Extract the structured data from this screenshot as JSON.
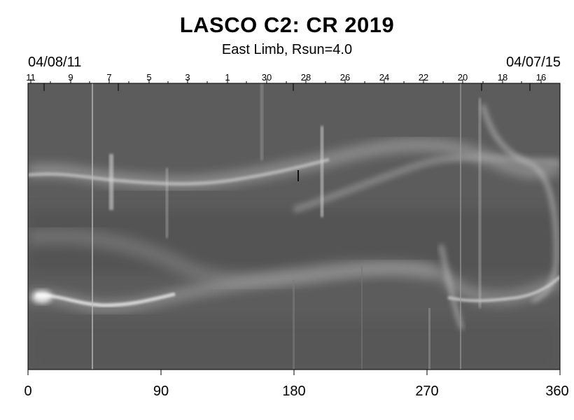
{
  "title": "LASCO C2: CR 2019",
  "subtitle": "East Limb, Rsun=4.0",
  "top_axis": {
    "start_date": "04/08/11",
    "end_date": "04/07/15",
    "day_labels": [
      "11",
      "9",
      "7",
      "5",
      "3",
      "1",
      "30",
      "28",
      "26",
      "24",
      "22",
      "20",
      "18",
      "16"
    ]
  },
  "bottom_axis": {
    "tick_labels": [
      "0",
      "90",
      "180",
      "270",
      "360"
    ]
  },
  "colors": {
    "background": "#ffffff",
    "image_base": "#5c5c5c",
    "text": "#000000"
  }
}
